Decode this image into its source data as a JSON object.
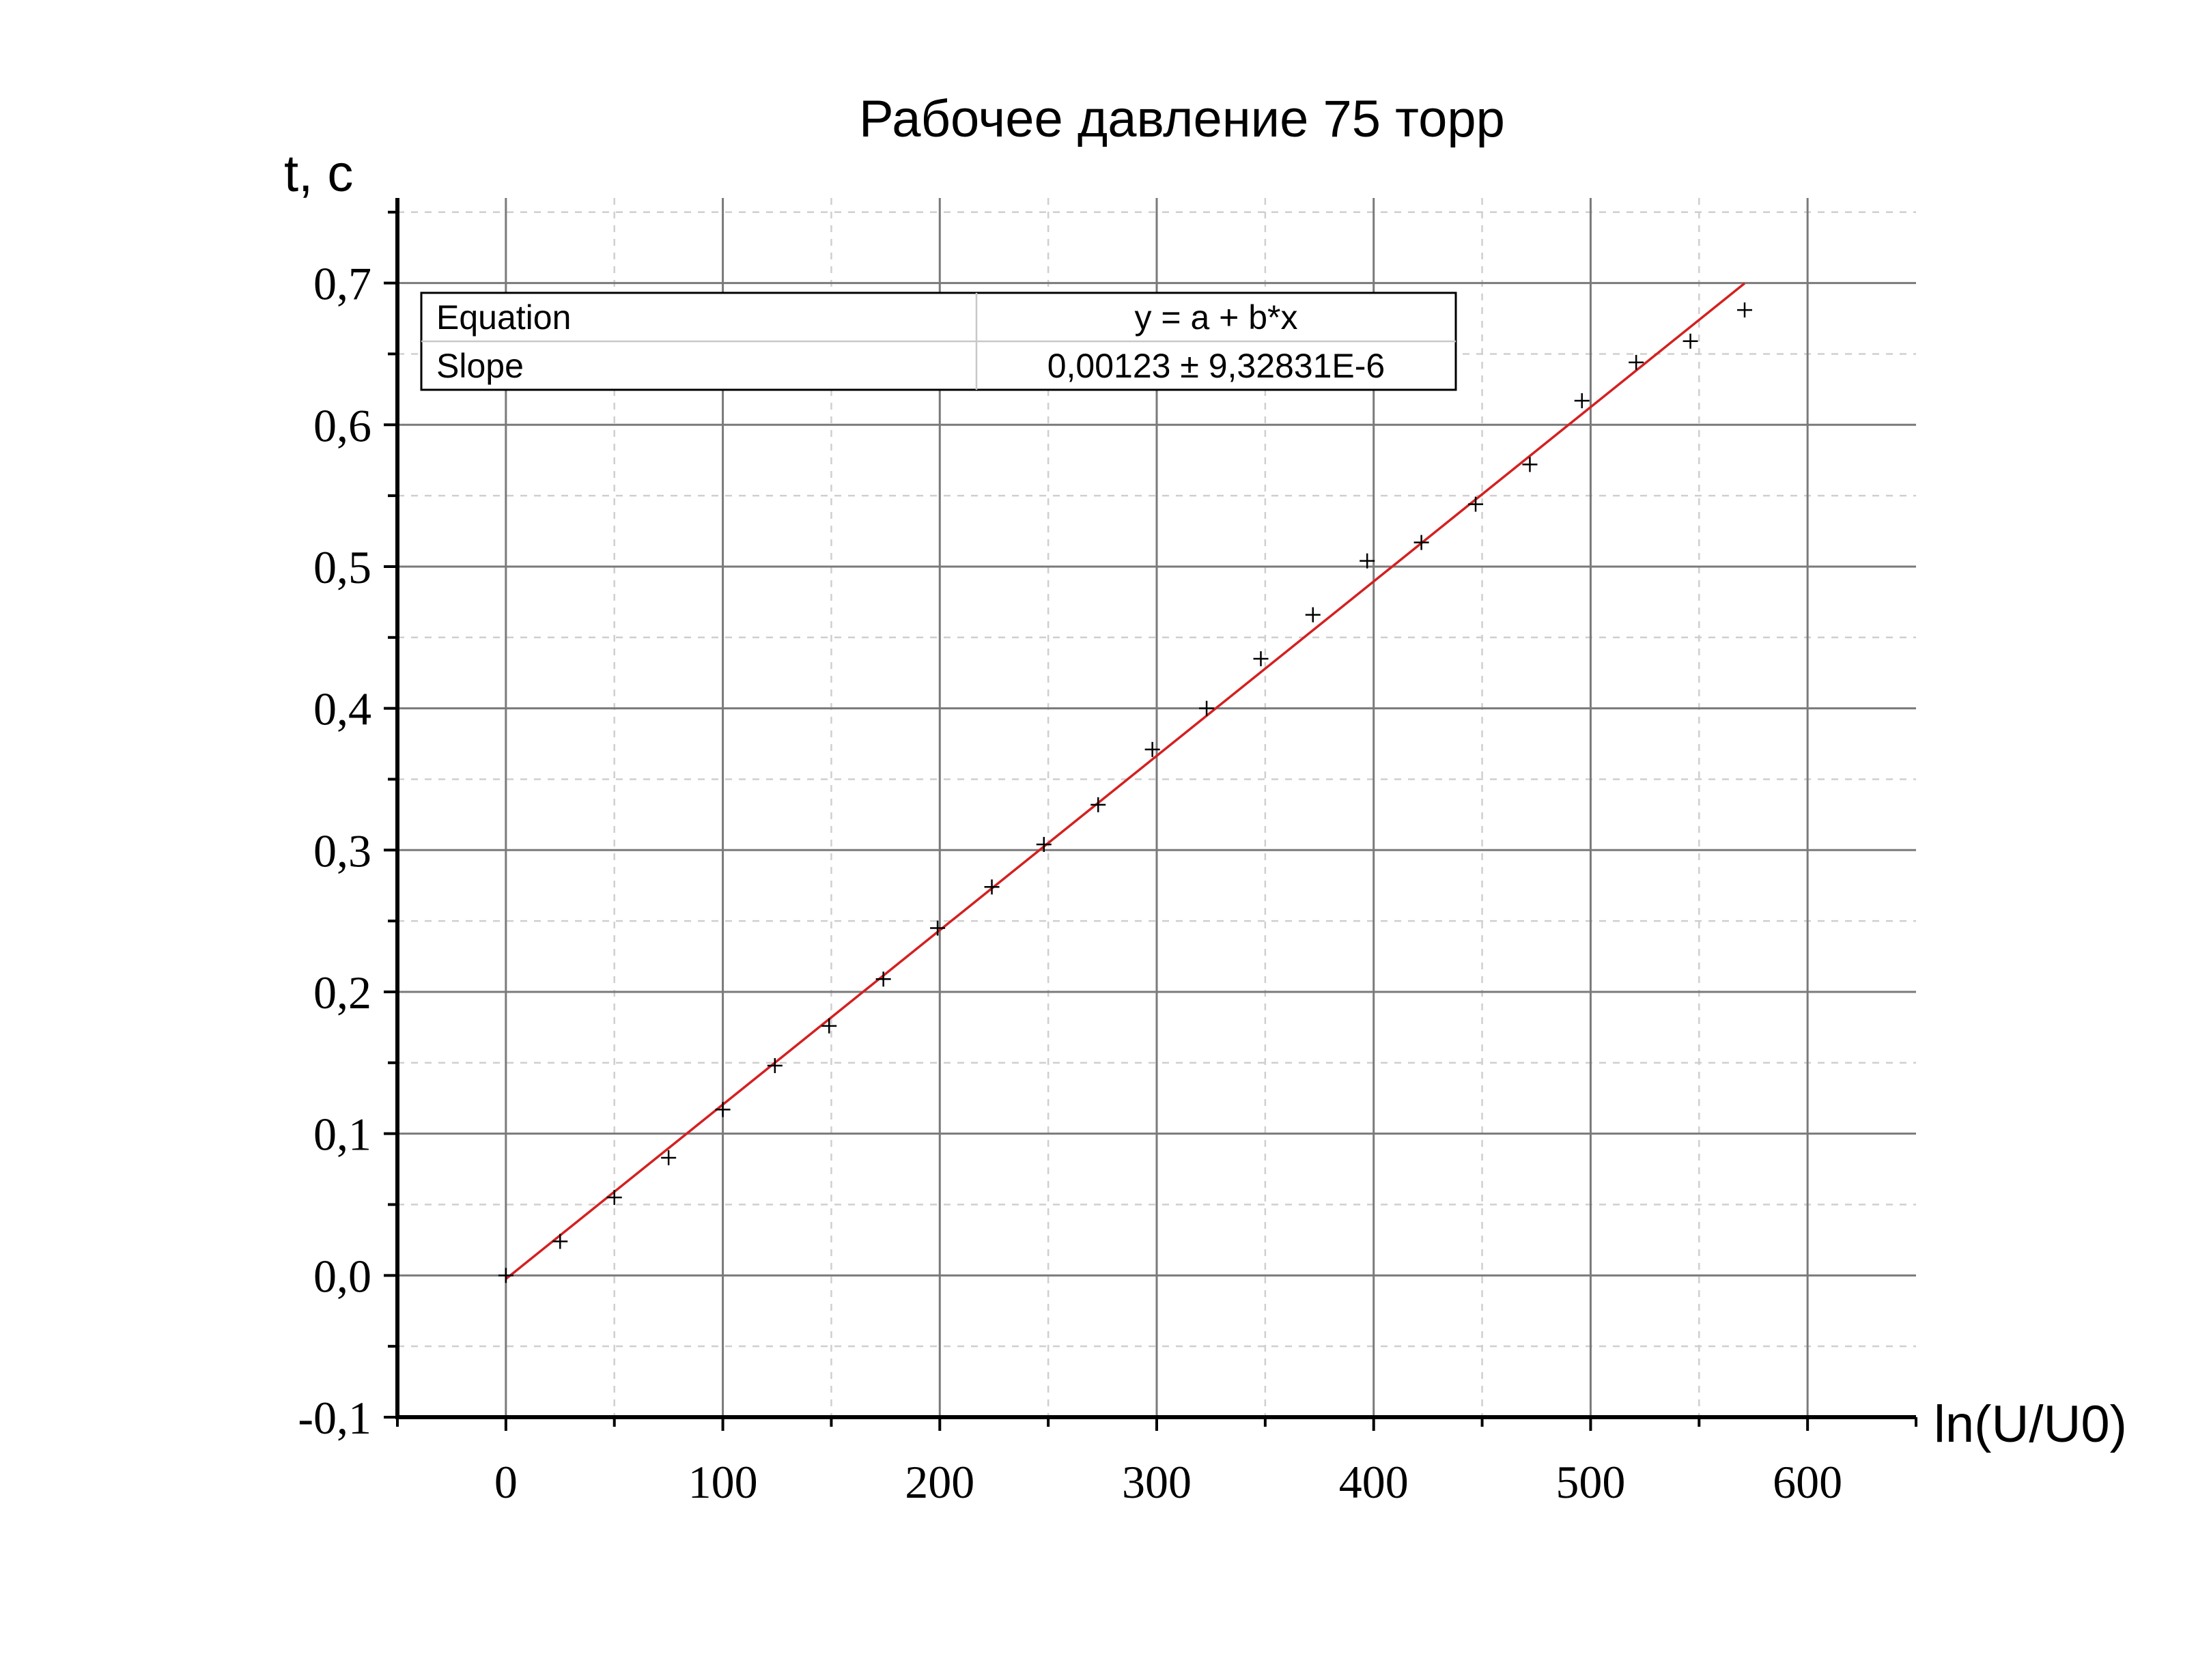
{
  "chart_data": {
    "type": "scatter",
    "title": "Рабочее давление 75 торр",
    "xlabel": "ln(U/U0)",
    "ylabel": "t, c",
    "xlim": [
      -50,
      650
    ],
    "ylim": [
      -0.1,
      0.76
    ],
    "x_ticks": [
      0,
      100,
      200,
      300,
      400,
      500,
      600
    ],
    "x_tick_labels": [
      "0",
      "100",
      "200",
      "300",
      "400",
      "500",
      "600"
    ],
    "y_ticks": [
      -0.1,
      0.0,
      0.1,
      0.2,
      0.3,
      0.4,
      0.5,
      0.6,
      0.7
    ],
    "y_tick_labels": [
      "-0,1",
      "0,0",
      "0,1",
      "0,2",
      "0,3",
      "0,4",
      "0,5",
      "0,6",
      "0,7"
    ],
    "grid": true,
    "series": [
      {
        "x": [
          0,
          25,
          50,
          75,
          100,
          124,
          149,
          174,
          199,
          224,
          248,
          273,
          298,
          323,
          348,
          372,
          397,
          422,
          447,
          472,
          496,
          521,
          546,
          571
        ],
        "y": [
          0.0,
          0.024,
          0.055,
          0.083,
          0.117,
          0.148,
          0.176,
          0.209,
          0.245,
          0.274,
          0.304,
          0.332,
          0.371,
          0.4,
          0.435,
          0.466,
          0.504,
          0.517,
          0.544,
          0.572,
          0.617,
          0.644,
          0.659,
          0.681
        ],
        "color": "#000000",
        "marker": "plus"
      }
    ],
    "fit": {
      "x_range": [
        0,
        571
      ],
      "intercept": -0.0025,
      "slope": 0.00123,
      "color": "#d42020"
    },
    "legend": {
      "placement": "top-left",
      "rows": [
        {
          "label": "Equation",
          "value": "y = a + b*x"
        },
        {
          "label": "Slope",
          "value": "0,00123 ± 9,32831E-6"
        }
      ]
    }
  }
}
